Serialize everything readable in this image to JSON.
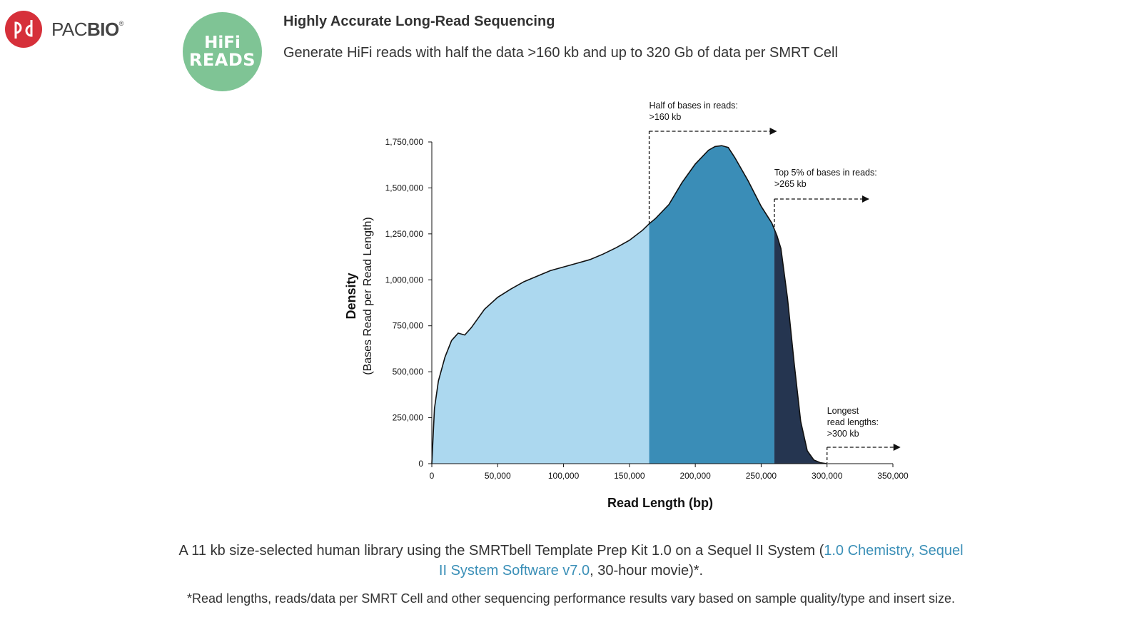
{
  "brand": {
    "name_prefix": "PAC",
    "name_suffix": "BIO",
    "mark": "®",
    "logo_icon": "pacbio-logo-icon",
    "color": "#d6303a"
  },
  "badge": {
    "line1": "HiFi",
    "line2": "READS",
    "color": "#7fc495"
  },
  "header": {
    "title": "Highly Accurate Long-Read Sequencing",
    "subtitle": "Generate HiFi reads with half the data >160 kb and up to 320 Gb of data per SMRT Cell"
  },
  "chart_data": {
    "type": "area",
    "xlabel": "Read Length (bp)",
    "ylabel": "Density",
    "ylabel_sub": "(Bases Read per Read Length)",
    "xlim": [
      0,
      350000
    ],
    "ylim": [
      0,
      1750000
    ],
    "xticks": [
      "0",
      "50,000",
      "100,000",
      "150,000",
      "200,000",
      "250,000",
      "300,000",
      "350,000"
    ],
    "yticks": [
      "0",
      "250,000",
      "500,000",
      "750,000",
      "1,000,000",
      "1,250,000",
      "1,500,000",
      "1,750,000"
    ],
    "x": [
      0,
      2000,
      5000,
      10000,
      15000,
      20000,
      25000,
      30000,
      40000,
      50000,
      60000,
      70000,
      80000,
      90000,
      100000,
      110000,
      120000,
      130000,
      140000,
      150000,
      160000,
      165000,
      170000,
      180000,
      190000,
      200000,
      210000,
      215000,
      220000,
      225000,
      230000,
      240000,
      250000,
      258000,
      262000,
      265000,
      270000,
      275000,
      280000,
      285000,
      290000,
      295000,
      300000
    ],
    "y": [
      0,
      300000,
      450000,
      580000,
      670000,
      710000,
      700000,
      740000,
      840000,
      905000,
      950000,
      990000,
      1020000,
      1050000,
      1070000,
      1090000,
      1110000,
      1140000,
      1175000,
      1215000,
      1270000,
      1305000,
      1335000,
      1410000,
      1530000,
      1630000,
      1705000,
      1725000,
      1730000,
      1720000,
      1665000,
      1540000,
      1400000,
      1310000,
      1240000,
      1170000,
      900000,
      550000,
      230000,
      70000,
      20000,
      5000,
      0
    ],
    "regions": [
      {
        "from": 0,
        "to": 165000,
        "color": "#acd8ef"
      },
      {
        "from": 165000,
        "to": 260000,
        "color": "#3a8db7"
      },
      {
        "from": 260000,
        "to": 300000,
        "color": "#253550"
      }
    ],
    "annotations": [
      {
        "line1": "Half of bases in reads:",
        "line2": ">160 kb",
        "line3": "",
        "x": 165000
      },
      {
        "line1": "Top 5% of bases in reads:",
        "line2": ">265 kb",
        "line3": "",
        "x": 260000
      },
      {
        "line1": "Longest",
        "line2": "read lengths:",
        "line3": ">300 kb",
        "x": 300000
      }
    ],
    "grid": false
  },
  "caption": {
    "text_before": "A 11 kb size-selected human library using the SMRTbell Template Prep Kit 1.0 on a Sequel II System (",
    "link": "1.0 Chemistry, Sequel II System Software v7.0",
    "text_after": ", 30-hour movie)*.",
    "link_color": "#3a8fb7"
  },
  "footnote": "*Read lengths, reads/data per SMRT Cell and other sequencing performance results vary based on sample quality/type and insert size."
}
